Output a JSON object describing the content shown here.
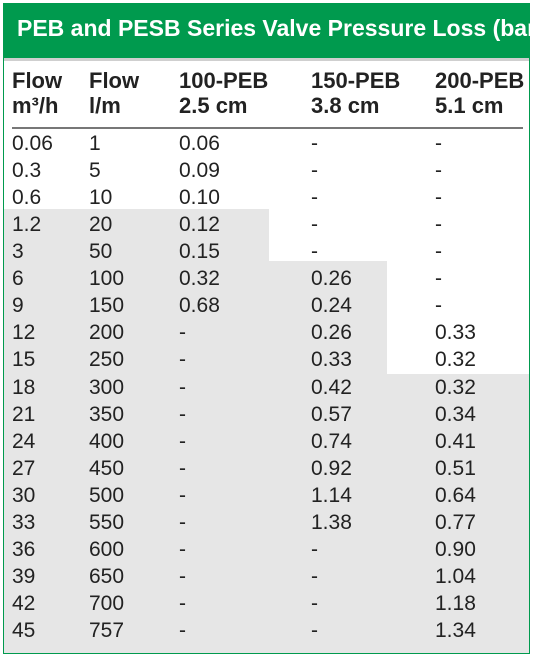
{
  "title": "PEB and PESB Series Valve Pressure Loss (bar)",
  "columns": [
    {
      "line1": "Flow",
      "line2": "m³/h"
    },
    {
      "line1": "Flow",
      "line2": "l/m"
    },
    {
      "line1": "100-PEB",
      "line2": "2.5 cm"
    },
    {
      "line1": "150-PEB",
      "line2": "3.8 cm"
    },
    {
      "line1": "200-PEB",
      "line2": "5.1 cm"
    }
  ],
  "rows": [
    [
      "0.06",
      "1",
      "0.06",
      "-",
      "-"
    ],
    [
      "0.3",
      "5",
      "0.09",
      "-",
      "-"
    ],
    [
      "0.6",
      "10",
      "0.10",
      "-",
      "-"
    ],
    [
      "1.2",
      "20",
      "0.12",
      "-",
      "-"
    ],
    [
      "3",
      "50",
      "0.15",
      "-",
      "-"
    ],
    [
      "6",
      "100",
      "0.32",
      "0.26",
      "-"
    ],
    [
      "9",
      "150",
      "0.68",
      "0.24",
      "-"
    ],
    [
      "12",
      "200",
      "-",
      "0.26",
      "0.33"
    ],
    [
      "15",
      "250",
      "-",
      "0.33",
      "0.32"
    ],
    [
      "18",
      "300",
      "-",
      "0.42",
      "0.32"
    ],
    [
      "21",
      "350",
      "-",
      "0.57",
      "0.34"
    ],
    [
      "24",
      "400",
      "-",
      "0.74",
      "0.41"
    ],
    [
      "27",
      "450",
      "-",
      "0.92",
      "0.51"
    ],
    [
      "30",
      "500",
      "-",
      "1.14",
      "0.64"
    ],
    [
      "33",
      "550",
      "-",
      "1.38",
      "0.77"
    ],
    [
      "36",
      "600",
      "-",
      "-",
      "0.90"
    ],
    [
      "39",
      "650",
      "-",
      "-",
      "1.04"
    ],
    [
      "42",
      "700",
      "-",
      "-",
      "1.18"
    ],
    [
      "45",
      "757",
      "-",
      "-",
      "1.34"
    ]
  ],
  "colors": {
    "header_green": "#009a4e",
    "shade_gray": "#e6e6e6"
  }
}
